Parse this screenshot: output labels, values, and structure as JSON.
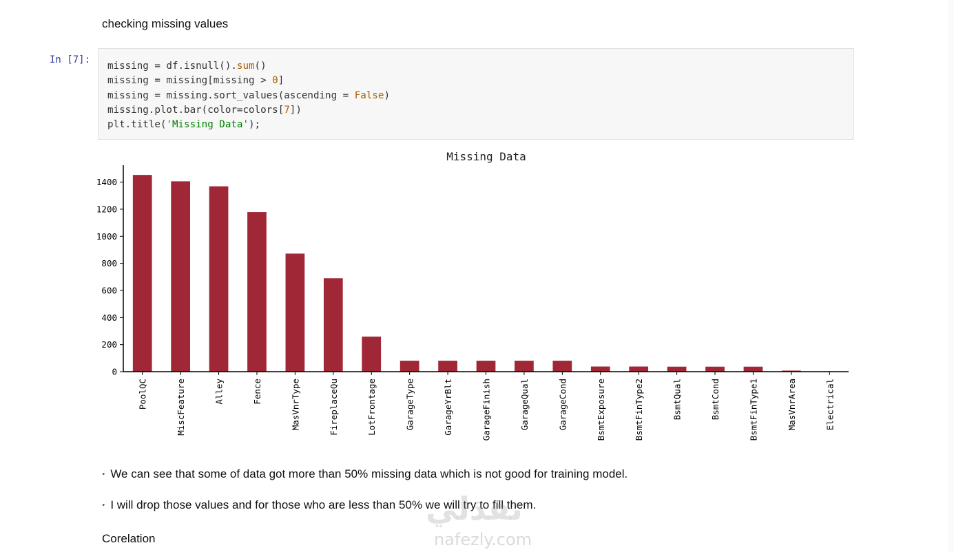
{
  "heading_missing": "checking missing values",
  "cell": {
    "prompt": "In [7]:",
    "code_lines": [
      [
        {
          "t": "missing = df.isnull()."
        },
        {
          "t": "sum",
          "c": "tok-fn"
        },
        {
          "t": "()"
        }
      ],
      [
        {
          "t": "missing = missing[missing > "
        },
        {
          "t": "0",
          "c": "tok-num"
        },
        {
          "t": "]"
        }
      ],
      [
        {
          "t": "missing = missing.sort_values(ascending = "
        },
        {
          "t": "False",
          "c": "tok-kw"
        },
        {
          "t": ")"
        }
      ],
      [
        {
          "t": "missing.plot.bar(color=colors["
        },
        {
          "t": "7",
          "c": "tok-num"
        },
        {
          "t": "])"
        }
      ],
      [
        {
          "t": "plt.title("
        },
        {
          "t": "'Missing Data'",
          "c": "tok-str"
        },
        {
          "t": ");"
        }
      ]
    ]
  },
  "chart_data": {
    "type": "bar",
    "title": "Missing Data",
    "xlabel": "",
    "ylabel": "",
    "color": "#a02735",
    "categories": [
      "PoolQC",
      "MiscFeature",
      "Alley",
      "Fence",
      "MasVnrType",
      "FireplaceQu",
      "LotFrontage",
      "GarageType",
      "GarageYrBlt",
      "GarageFinish",
      "GarageQual",
      "GarageCond",
      "BsmtExposure",
      "BsmtFinType2",
      "BsmtQual",
      "BsmtCond",
      "BsmtFinType1",
      "MasVnrArea",
      "Electrical"
    ],
    "values": [
      1453,
      1406,
      1369,
      1179,
      872,
      690,
      259,
      81,
      81,
      81,
      81,
      81,
      38,
      38,
      37,
      37,
      37,
      8,
      1
    ],
    "yticks": [
      0,
      200,
      400,
      600,
      800,
      1000,
      1200,
      1400
    ],
    "ylim": [
      0,
      1525
    ],
    "grid": false
  },
  "bullets": [
    "We can see that some of data got more than 50% missing data which is not good for training model.",
    "I will drop those values and for those who are less than 50% we will try to fill them."
  ],
  "bullet_marker": "‣",
  "heading_corelation": "Corelation",
  "watermark": {
    "arabic": "نفذلي",
    "latin": "nafezly.com"
  }
}
